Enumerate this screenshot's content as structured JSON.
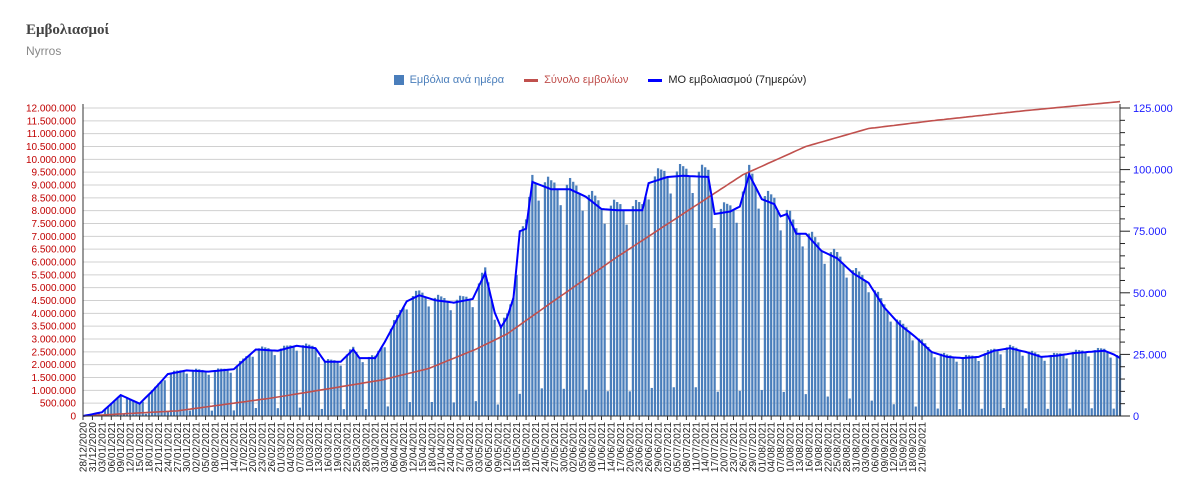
{
  "chart_data": {
    "type": "bar",
    "title": "Εμβολιασμοί",
    "subtitle": "Nyrros",
    "series": [
      {
        "name": "Εμβόλια ανά ημέρα",
        "kind": "bar",
        "axis": "right",
        "color": "#4a7ebb"
      },
      {
        "name": "Σύνολο εμβολίων",
        "kind": "line",
        "axis": "left",
        "color": "#c0504d"
      },
      {
        "name": "ΜΟ εμβολιασμού (7ημερών)",
        "kind": "line",
        "axis": "right",
        "color": "#0000ff"
      }
    ],
    "start_date": "2020-12-28",
    "x_labels": [
      "28/12/2020",
      "31/12/2020",
      "03/01/2021",
      "06/01/2021",
      "09/01/2021",
      "12/01/2021",
      "15/01/2021",
      "18/01/2021",
      "21/01/2021",
      "24/01/2021",
      "27/01/2021",
      "30/01/2021",
      "02/02/2021",
      "05/02/2021",
      "08/02/2021",
      "11/02/2021",
      "14/02/2021",
      "17/02/2021",
      "20/02/2021",
      "23/02/2021",
      "26/02/2021",
      "01/03/2021",
      "04/03/2021",
      "07/03/2021",
      "10/03/2021",
      "13/03/2021",
      "16/03/2021",
      "19/03/2021",
      "22/03/2021",
      "25/03/2021",
      "28/03/2021",
      "31/03/2021",
      "03/04/2021",
      "06/04/2021",
      "09/04/2021",
      "12/04/2021",
      "15/04/2021",
      "18/04/2021",
      "21/04/2021",
      "24/04/2021",
      "27/04/2021",
      "30/04/2021",
      "03/05/2021",
      "06/05/2021",
      "09/05/2021",
      "12/05/2021",
      "15/05/2021",
      "18/05/2021",
      "21/05/2021",
      "24/05/2021",
      "27/05/2021",
      "30/05/2021",
      "02/06/2021",
      "05/06/2021",
      "08/06/2021",
      "11/06/2021",
      "14/06/2021",
      "17/06/2021",
      "20/06/2021",
      "23/06/2021",
      "26/06/2021",
      "29/06/2021",
      "02/07/2021",
      "05/07/2021",
      "08/07/2021",
      "11/07/2021",
      "14/07/2021",
      "17/07/2021",
      "20/07/2021",
      "23/07/2021",
      "26/07/2021",
      "29/07/2021",
      "01/08/2021",
      "04/08/2021",
      "07/08/2021",
      "10/08/2021",
      "13/08/2021",
      "16/08/2021",
      "19/08/2021",
      "22/08/2021",
      "25/08/2021",
      "28/08/2021",
      "31/08/2021",
      "03/09/2021",
      "06/09/2021",
      "09/09/2021",
      "12/09/2021",
      "15/09/2021",
      "18/09/2021",
      "21/09/2021"
    ],
    "y_left": {
      "min": 0,
      "max": 12000000,
      "ticks": [
        "0",
        "500.000",
        "1.000.000",
        "1.500.000",
        "2.000.000",
        "2.500.000",
        "3.000.000",
        "3.500.000",
        "4.000.000",
        "4.500.000",
        "5.000.000",
        "5.500.000",
        "6.000.000",
        "6.500.000",
        "7.000.000",
        "7.500.000",
        "8.000.000",
        "8.500.000",
        "9.000.000",
        "9.500.000",
        "10.000.000",
        "10.500.000",
        "11.000.000",
        "11.500.000",
        "12.000.000"
      ]
    },
    "y_right": {
      "min": 0,
      "max": 125000,
      "ticks": [
        "0",
        "25.000",
        "50.000",
        "75.000",
        "100.000",
        "125.000"
      ]
    },
    "daily_weekly_pattern": [
      1.02,
      1.05,
      1.04,
      1.03,
      1.0,
      0.93,
      0.12
    ],
    "moving_avg_7day": [
      [
        0,
        0
      ],
      [
        6,
        1500
      ],
      [
        12,
        8500
      ],
      [
        18,
        5000
      ],
      [
        22,
        10000
      ],
      [
        27,
        17000
      ],
      [
        33,
        18500
      ],
      [
        40,
        18000
      ],
      [
        48,
        19000
      ],
      [
        55,
        27000
      ],
      [
        62,
        26500
      ],
      [
        68,
        28500
      ],
      [
        74,
        27500
      ],
      [
        77,
        22000
      ],
      [
        82,
        22000
      ],
      [
        86,
        27000
      ],
      [
        88,
        23500
      ],
      [
        93,
        23500
      ],
      [
        96,
        30000
      ],
      [
        103,
        46500
      ],
      [
        107,
        49000
      ],
      [
        112,
        47000
      ],
      [
        118,
        46000
      ],
      [
        124,
        47500
      ],
      [
        128,
        58000
      ],
      [
        131,
        42000
      ],
      [
        133,
        36000
      ],
      [
        135,
        40000
      ],
      [
        137,
        48000
      ],
      [
        139,
        75000
      ],
      [
        141,
        76000
      ],
      [
        143,
        95000
      ],
      [
        149,
        92000
      ],
      [
        155,
        92000
      ],
      [
        160,
        89000
      ],
      [
        165,
        84000
      ],
      [
        170,
        83500
      ],
      [
        178,
        83500
      ],
      [
        180,
        94500
      ],
      [
        186,
        97000
      ],
      [
        191,
        97500
      ],
      [
        199,
        97000
      ],
      [
        201,
        82000
      ],
      [
        206,
        83000
      ],
      [
        209,
        85000
      ],
      [
        212,
        98000
      ],
      [
        216,
        88000
      ],
      [
        220,
        86000
      ],
      [
        222,
        81000
      ],
      [
        224,
        82000
      ],
      [
        227,
        74000
      ],
      [
        230,
        74000
      ],
      [
        235,
        67000
      ],
      [
        240,
        64000
      ],
      [
        245,
        58000
      ],
      [
        250,
        54000
      ],
      [
        255,
        44000
      ],
      [
        260,
        37000
      ],
      [
        265,
        32000
      ],
      [
        270,
        26000
      ],
      [
        275,
        24000
      ],
      [
        280,
        23500
      ],
      [
        285,
        24000
      ],
      [
        290,
        26500
      ],
      [
        295,
        27500
      ],
      [
        300,
        26000
      ],
      [
        305,
        24000
      ],
      [
        310,
        24500
      ],
      [
        315,
        25500
      ],
      [
        320,
        26000
      ],
      [
        325,
        26500
      ],
      [
        328,
        25000
      ],
      [
        330,
        23500
      ]
    ],
    "total_vaccinations": [
      [
        0,
        0
      ],
      [
        30,
        200000
      ],
      [
        60,
        700000
      ],
      [
        80,
        1100000
      ],
      [
        95,
        1400000
      ],
      [
        110,
        1850000
      ],
      [
        125,
        2600000
      ],
      [
        135,
        3200000
      ],
      [
        150,
        4500000
      ],
      [
        170,
        6200000
      ],
      [
        190,
        7800000
      ],
      [
        210,
        9400000
      ],
      [
        230,
        10500000
      ],
      [
        250,
        11200000
      ],
      [
        270,
        11500000
      ],
      [
        300,
        11900000
      ],
      [
        330,
        12250000
      ]
    ]
  }
}
